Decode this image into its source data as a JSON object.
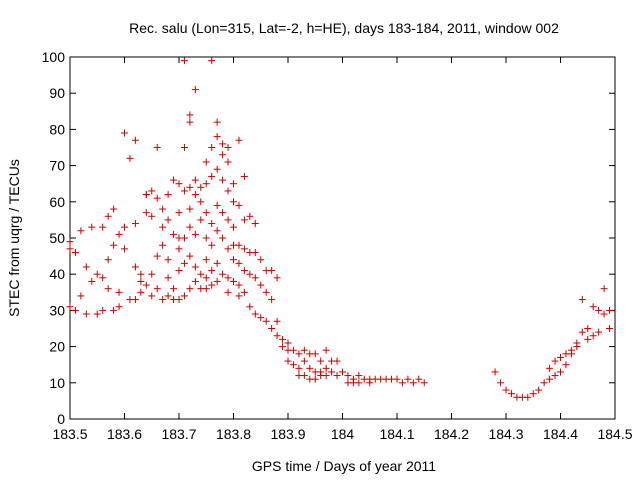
{
  "chart_data": {
    "type": "scatter",
    "title": "Rec. salu (Lon=315, Lat=-2, h=HE), days 183-184, 2011, window 002",
    "xlabel": "GPS time / Days of year 2011",
    "ylabel": "STEC from uqrg / TECUs",
    "xlim": [
      183.5,
      184.5
    ],
    "ylim": [
      0,
      100
    ],
    "x_ticks": [
      "183.5",
      "183.6",
      "183.7",
      "183.8",
      "183.9",
      "184",
      "184.1",
      "184.2",
      "184.3",
      "184.4",
      "184.5"
    ],
    "y_ticks": [
      "0",
      "10",
      "20",
      "30",
      "40",
      "50",
      "60",
      "70",
      "80",
      "90",
      "100"
    ],
    "grid": false,
    "legend": "none",
    "marker": "+",
    "color": "#cc0000",
    "series": [
      {
        "points": [
          [
            183.5,
            49
          ],
          [
            183.5,
            47
          ],
          [
            183.51,
            46
          ],
          [
            183.5,
            31
          ],
          [
            183.51,
            30
          ],
          [
            183.52,
            52
          ],
          [
            183.52,
            34
          ],
          [
            183.53,
            42
          ],
          [
            183.53,
            29
          ],
          [
            183.54,
            53
          ],
          [
            183.54,
            38
          ],
          [
            183.55,
            40
          ],
          [
            183.55,
            29
          ],
          [
            183.56,
            53
          ],
          [
            183.56,
            39
          ],
          [
            183.56,
            30
          ],
          [
            183.57,
            56
          ],
          [
            183.57,
            44
          ],
          [
            183.57,
            36
          ],
          [
            183.58,
            58
          ],
          [
            183.58,
            48
          ],
          [
            183.58,
            30
          ],
          [
            183.59,
            35
          ],
          [
            183.59,
            31
          ],
          [
            183.59,
            51
          ],
          [
            183.6,
            79
          ],
          [
            183.6,
            53
          ],
          [
            183.6,
            47
          ],
          [
            183.61,
            33
          ],
          [
            183.61,
            72
          ],
          [
            183.62,
            33
          ],
          [
            183.62,
            54
          ],
          [
            183.62,
            77
          ],
          [
            183.62,
            42
          ],
          [
            183.63,
            40
          ],
          [
            183.63,
            38
          ],
          [
            183.63,
            35
          ],
          [
            183.64,
            62
          ],
          [
            183.64,
            57
          ],
          [
            183.64,
            62
          ],
          [
            183.64,
            37
          ],
          [
            183.65,
            63
          ],
          [
            183.65,
            56
          ],
          [
            183.65,
            40
          ],
          [
            183.65,
            34
          ],
          [
            183.66,
            75
          ],
          [
            183.66,
            61
          ],
          [
            183.66,
            45
          ],
          [
            183.66,
            36
          ],
          [
            183.67,
            58
          ],
          [
            183.67,
            53
          ],
          [
            183.67,
            48
          ],
          [
            183.67,
            33
          ],
          [
            183.68,
            62
          ],
          [
            183.68,
            55
          ],
          [
            183.68,
            44
          ],
          [
            183.68,
            39
          ],
          [
            183.68,
            34
          ],
          [
            183.69,
            66
          ],
          [
            183.69,
            51
          ],
          [
            183.69,
            36
          ],
          [
            183.69,
            33
          ],
          [
            183.7,
            65
          ],
          [
            183.7,
            57
          ],
          [
            183.7,
            50
          ],
          [
            183.7,
            47
          ],
          [
            183.7,
            41
          ],
          [
            183.7,
            33
          ],
          [
            183.71,
            99
          ],
          [
            183.71,
            75
          ],
          [
            183.71,
            63
          ],
          [
            183.71,
            50
          ],
          [
            183.71,
            43
          ],
          [
            183.71,
            34
          ],
          [
            183.72,
            84
          ],
          [
            183.72,
            82
          ],
          [
            183.72,
            64
          ],
          [
            183.72,
            58
          ],
          [
            183.72,
            53
          ],
          [
            183.72,
            45
          ],
          [
            183.72,
            36
          ],
          [
            183.73,
            91
          ],
          [
            183.73,
            66
          ],
          [
            183.73,
            62
          ],
          [
            183.73,
            51
          ],
          [
            183.73,
            42
          ],
          [
            183.73,
            38
          ],
          [
            183.74,
            64
          ],
          [
            183.74,
            60
          ],
          [
            183.74,
            55
          ],
          [
            183.74,
            40
          ],
          [
            183.74,
            36
          ],
          [
            183.75,
            71
          ],
          [
            183.75,
            65
          ],
          [
            183.75,
            57
          ],
          [
            183.75,
            50
          ],
          [
            183.75,
            44
          ],
          [
            183.75,
            39
          ],
          [
            183.75,
            36
          ],
          [
            183.76,
            99
          ],
          [
            183.76,
            75
          ],
          [
            183.76,
            67
          ],
          [
            183.76,
            54
          ],
          [
            183.76,
            48
          ],
          [
            183.76,
            41
          ],
          [
            183.76,
            37
          ],
          [
            183.77,
            82
          ],
          [
            183.77,
            78
          ],
          [
            183.77,
            69
          ],
          [
            183.77,
            59
          ],
          [
            183.77,
            52
          ],
          [
            183.77,
            43
          ],
          [
            183.77,
            38
          ],
          [
            183.78,
            76
          ],
          [
            183.78,
            73
          ],
          [
            183.78,
            66
          ],
          [
            183.78,
            57
          ],
          [
            183.78,
            50
          ],
          [
            183.78,
            40
          ],
          [
            183.79,
            75
          ],
          [
            183.79,
            71
          ],
          [
            183.79,
            63
          ],
          [
            183.79,
            55
          ],
          [
            183.79,
            47
          ],
          [
            183.79,
            39
          ],
          [
            183.79,
            35
          ],
          [
            183.8,
            65
          ],
          [
            183.8,
            60
          ],
          [
            183.8,
            53
          ],
          [
            183.8,
            48
          ],
          [
            183.8,
            44
          ],
          [
            183.8,
            38
          ],
          [
            183.81,
            77
          ],
          [
            183.81,
            59
          ],
          [
            183.81,
            48
          ],
          [
            183.81,
            43
          ],
          [
            183.81,
            37
          ],
          [
            183.81,
            34
          ],
          [
            183.82,
            67
          ],
          [
            183.82,
            55
          ],
          [
            183.82,
            47
          ],
          [
            183.82,
            41
          ],
          [
            183.82,
            35
          ],
          [
            183.83,
            56
          ],
          [
            183.83,
            46
          ],
          [
            183.83,
            40
          ],
          [
            183.83,
            31
          ],
          [
            183.84,
            54
          ],
          [
            183.84,
            46
          ],
          [
            183.84,
            39
          ],
          [
            183.84,
            29
          ],
          [
            183.85,
            44
          ],
          [
            183.85,
            37
          ],
          [
            183.85,
            28
          ],
          [
            183.86,
            41
          ],
          [
            183.86,
            35
          ],
          [
            183.86,
            27
          ],
          [
            183.87,
            41
          ],
          [
            183.87,
            33
          ],
          [
            183.87,
            25
          ],
          [
            183.88,
            39
          ],
          [
            183.88,
            27
          ],
          [
            183.88,
            23
          ],
          [
            183.89,
            22
          ],
          [
            183.89,
            20
          ],
          [
            183.9,
            21
          ],
          [
            183.9,
            19
          ],
          [
            183.9,
            16
          ],
          [
            183.91,
            19
          ],
          [
            183.91,
            15
          ],
          [
            183.92,
            18
          ],
          [
            183.92,
            14
          ],
          [
            183.92,
            12
          ],
          [
            183.93,
            19
          ],
          [
            183.93,
            16
          ],
          [
            183.93,
            12
          ],
          [
            183.94,
            18
          ],
          [
            183.94,
            14
          ],
          [
            183.94,
            11
          ],
          [
            183.95,
            18
          ],
          [
            183.95,
            13
          ],
          [
            183.95,
            11
          ],
          [
            183.96,
            16
          ],
          [
            183.96,
            13
          ],
          [
            183.96,
            12
          ],
          [
            183.97,
            19
          ],
          [
            183.97,
            14
          ],
          [
            183.97,
            12
          ],
          [
            183.98,
            16
          ],
          [
            183.98,
            13
          ],
          [
            183.99,
            16
          ],
          [
            183.99,
            12
          ],
          [
            184.0,
            13
          ],
          [
            184.01,
            12
          ],
          [
            184.01,
            10
          ],
          [
            184.02,
            11
          ],
          [
            184.02,
            10
          ],
          [
            184.03,
            12
          ],
          [
            184.03,
            10
          ],
          [
            184.04,
            11
          ],
          [
            184.05,
            11
          ],
          [
            184.05,
            10
          ],
          [
            184.06,
            11
          ],
          [
            184.07,
            11
          ],
          [
            184.08,
            11
          ],
          [
            184.09,
            11
          ],
          [
            184.1,
            11
          ],
          [
            184.11,
            10
          ],
          [
            184.12,
            11
          ],
          [
            184.13,
            10
          ],
          [
            184.14,
            11
          ],
          [
            184.15,
            10
          ],
          [
            184.28,
            13
          ],
          [
            184.29,
            10
          ],
          [
            184.3,
            8
          ],
          [
            184.31,
            7
          ],
          [
            184.32,
            6
          ],
          [
            184.33,
            6
          ],
          [
            184.34,
            6
          ],
          [
            184.35,
            7
          ],
          [
            184.36,
            8
          ],
          [
            184.37,
            10
          ],
          [
            184.38,
            11
          ],
          [
            184.38,
            14
          ],
          [
            184.39,
            12
          ],
          [
            184.39,
            16
          ],
          [
            184.4,
            17
          ],
          [
            184.4,
            13
          ],
          [
            184.41,
            15
          ],
          [
            184.41,
            18
          ],
          [
            184.42,
            19
          ],
          [
            184.42,
            18
          ],
          [
            184.43,
            21
          ],
          [
            184.43,
            20
          ],
          [
            184.44,
            33
          ],
          [
            184.44,
            24
          ],
          [
            184.45,
            25
          ],
          [
            184.45,
            22
          ],
          [
            184.46,
            31
          ],
          [
            184.46,
            23
          ],
          [
            184.47,
            30
          ],
          [
            184.47,
            24
          ],
          [
            184.48,
            36
          ],
          [
            184.48,
            29
          ],
          [
            184.49,
            25
          ],
          [
            184.49,
            30
          ]
        ]
      }
    ]
  }
}
